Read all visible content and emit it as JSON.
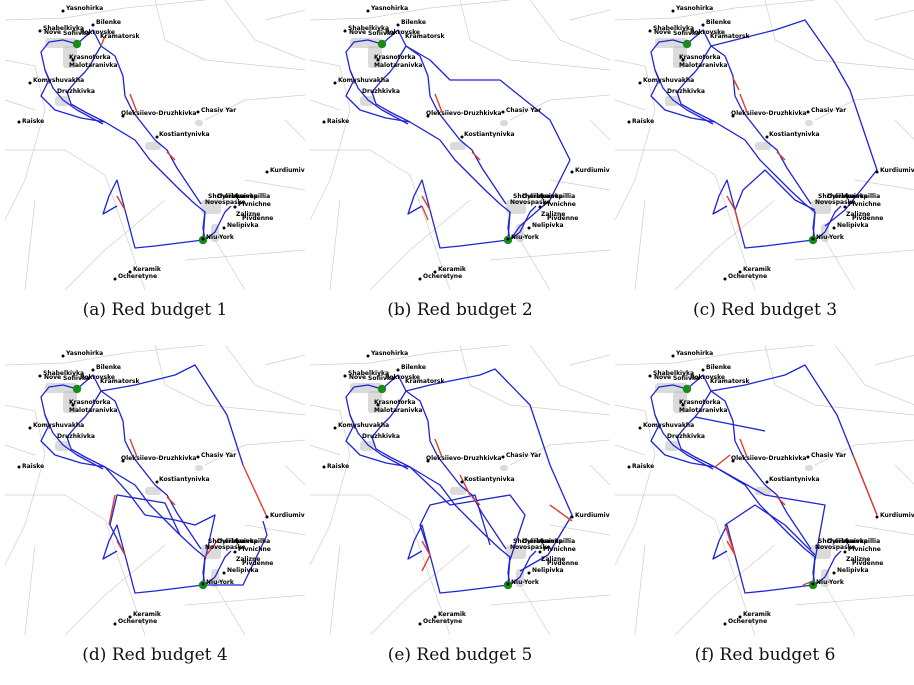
{
  "captions": [
    "(a) Red budget 1",
    "(b) Red budget 2",
    "(c) Red budget 3",
    "(d) Red budget 4",
    "(e) Red budget 5",
    "(f) Red budget 6"
  ],
  "colors": {
    "blue_route": "#1f24d6",
    "red_route": "#e0402a",
    "depot": "#1a8a1a",
    "background_roads": "#cfcfcf",
    "urban": "#bdbdbd"
  },
  "towns": [
    {
      "name": "Yasnohirka"
    },
    {
      "name": "Bilenke"
    },
    {
      "name": "Shabelkivka"
    },
    {
      "name": "Nove"
    },
    {
      "name": "Sofiivka"
    },
    {
      "name": "Pokrovske"
    },
    {
      "name": "Kramatorsk"
    },
    {
      "name": "Krasnotorka"
    },
    {
      "name": "Malotaranivka"
    },
    {
      "name": "Komyshuvakha"
    },
    {
      "name": "Druzhkivka"
    },
    {
      "name": "Raiske"
    },
    {
      "name": "Oleksiievo-Druzhkivka"
    },
    {
      "name": "Chasiv Yar"
    },
    {
      "name": "Kostiantynivka"
    },
    {
      "name": "Kurdiumivka"
    },
    {
      "name": "Shcherbynivka"
    },
    {
      "name": "Novospaske"
    },
    {
      "name": "Dyliivka"
    },
    {
      "name": "Ivanopillia"
    },
    {
      "name": "Pivnichne"
    },
    {
      "name": "Zalizne"
    },
    {
      "name": "Pivdenne"
    },
    {
      "name": "Nelipivka"
    },
    {
      "name": "Niu-York"
    },
    {
      "name": "Ocheretyne"
    },
    {
      "name": "Keramik"
    }
  ]
}
